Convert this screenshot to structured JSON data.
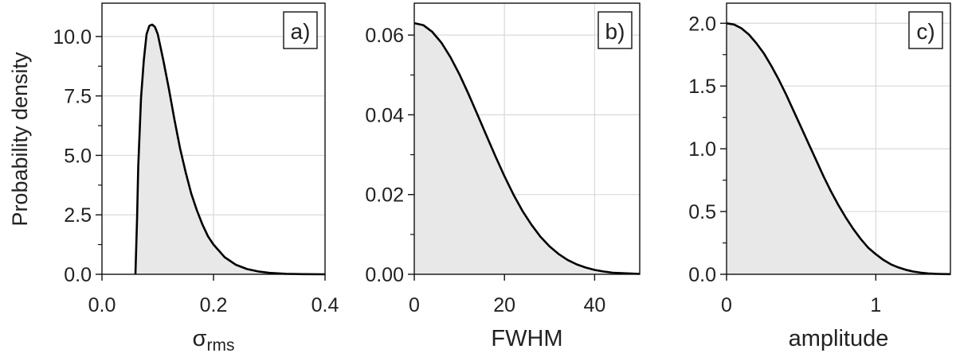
{
  "figure": {
    "ylabel": "Probability density",
    "curve_color": "#000000",
    "fill_color": "#e8e8e8",
    "grid_color": "#d9d9d9"
  },
  "chart_data": [
    {
      "type": "area",
      "panel_label": "a)",
      "xlabel_main": "σ",
      "xlabel_sub": "rms",
      "xlim": [
        0.0,
        0.4
      ],
      "ylim": [
        0,
        11.4
      ],
      "xticks": [
        0.0,
        0.2,
        0.4
      ],
      "xtick_labels": [
        "0.0",
        "0.2",
        "0.4"
      ],
      "yticks": [
        0.0,
        2.5,
        5.0,
        7.5,
        10.0
      ],
      "ytick_labels": [
        "0.0",
        "2.5",
        "5.0",
        "7.5",
        "10.0"
      ],
      "grid": true,
      "x": [
        0.06,
        0.063,
        0.065,
        0.07,
        0.075,
        0.08,
        0.085,
        0.09,
        0.095,
        0.1,
        0.11,
        0.12,
        0.13,
        0.14,
        0.15,
        0.16,
        0.17,
        0.18,
        0.19,
        0.2,
        0.22,
        0.24,
        0.26,
        0.28,
        0.3,
        0.33,
        0.36,
        0.4
      ],
      "y": [
        0.0,
        2.4,
        4.5,
        7.4,
        9.0,
        10.1,
        10.45,
        10.5,
        10.4,
        10.1,
        9.0,
        7.8,
        6.5,
        5.3,
        4.3,
        3.4,
        2.7,
        2.1,
        1.6,
        1.25,
        0.72,
        0.4,
        0.22,
        0.12,
        0.06,
        0.02,
        0.008,
        0.0
      ]
    },
    {
      "type": "area",
      "panel_label": "b)",
      "xlabel_main": "FWHM",
      "xlabel_sub": "",
      "xlim": [
        0,
        50
      ],
      "ylim": [
        0,
        0.068
      ],
      "xticks": [
        0,
        20,
        40
      ],
      "xtick_labels": [
        "0",
        "20",
        "40"
      ],
      "yticks": [
        0.0,
        0.02,
        0.04,
        0.06
      ],
      "ytick_labels": [
        "0.00",
        "0.02",
        "0.04",
        "0.06"
      ],
      "grid": true,
      "x": [
        0,
        2,
        4,
        6,
        8,
        10,
        12,
        14,
        16,
        18,
        20,
        22,
        24,
        26,
        28,
        30,
        32,
        34,
        36,
        38,
        40,
        42,
        44,
        46,
        48,
        50
      ],
      "y": [
        0.063,
        0.0625,
        0.0608,
        0.0581,
        0.0545,
        0.0502,
        0.0453,
        0.0401,
        0.0348,
        0.0296,
        0.0246,
        0.02,
        0.0159,
        0.0124,
        0.0094,
        0.007,
        0.0051,
        0.0036,
        0.0025,
        0.0017,
        0.0011,
        0.0007,
        0.0004,
        0.0003,
        0.0002,
        0.0001
      ]
    },
    {
      "type": "area",
      "panel_label": "c)",
      "xlabel_main": "amplitude",
      "xlabel_sub": "",
      "xlim": [
        0,
        1.5
      ],
      "ylim": [
        0,
        2.16
      ],
      "xticks": [
        0,
        1
      ],
      "xtick_labels": [
        "0",
        "1"
      ],
      "yticks": [
        0.0,
        0.5,
        1.0,
        1.5,
        2.0
      ],
      "ytick_labels": [
        "0.0",
        "0.5",
        "1.0",
        "1.5",
        "2.0"
      ],
      "grid": true,
      "x": [
        0,
        0.05,
        0.1,
        0.15,
        0.2,
        0.25,
        0.3,
        0.35,
        0.4,
        0.45,
        0.5,
        0.55,
        0.6,
        0.65,
        0.7,
        0.75,
        0.8,
        0.85,
        0.9,
        0.95,
        1.0,
        1.05,
        1.1,
        1.15,
        1.2,
        1.25,
        1.3,
        1.35,
        1.4,
        1.45,
        1.5
      ],
      "y": [
        2.0,
        1.99,
        1.96,
        1.91,
        1.84,
        1.76,
        1.66,
        1.55,
        1.43,
        1.3,
        1.17,
        1.04,
        0.91,
        0.78,
        0.66,
        0.55,
        0.45,
        0.36,
        0.28,
        0.21,
        0.16,
        0.115,
        0.08,
        0.055,
        0.036,
        0.022,
        0.013,
        0.007,
        0.004,
        0.002,
        0.001
      ]
    }
  ]
}
